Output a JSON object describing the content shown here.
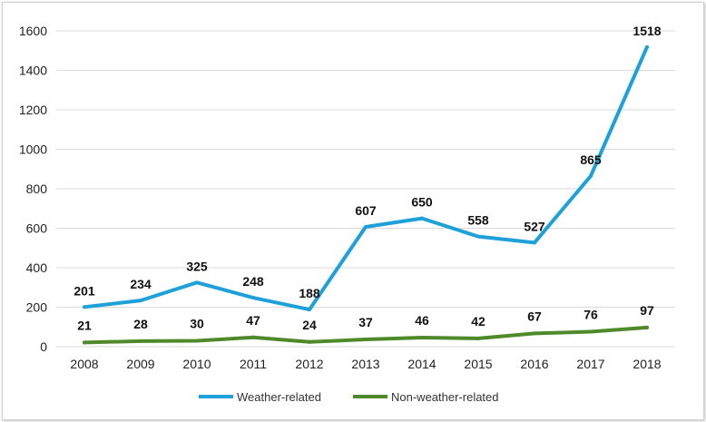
{
  "chart_data": {
    "type": "line",
    "title": "",
    "xlabel": "",
    "ylabel": "",
    "categories": [
      "2008",
      "2009",
      "2010",
      "2011",
      "2012",
      "2013",
      "2014",
      "2015",
      "2016",
      "2017",
      "2018"
    ],
    "ylim": [
      0,
      1600
    ],
    "yticks": [
      0,
      200,
      400,
      600,
      800,
      1000,
      1200,
      1400,
      1600
    ],
    "grid": true,
    "legend_position": "bottom",
    "series": [
      {
        "name": "Weather-related",
        "color": "#1ea0d8",
        "values": [
          201,
          234,
          325,
          248,
          188,
          607,
          650,
          558,
          527,
          865,
          1518
        ]
      },
      {
        "name": "Non-weather-related",
        "color": "#4e8a2a",
        "values": [
          21,
          28,
          30,
          47,
          24,
          37,
          46,
          42,
          67,
          76,
          97
        ]
      }
    ]
  }
}
